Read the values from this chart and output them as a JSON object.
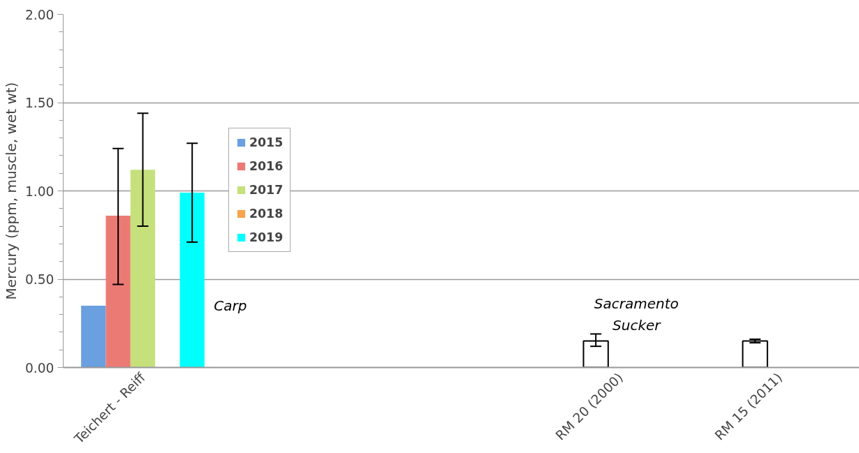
{
  "chart_data": {
    "type": "bar",
    "ylabel": "Mercury (ppm, muscle, wet wt)",
    "categories": [
      "Teichert - Reiff",
      null,
      null,
      "RM 20 (2000)",
      "RM 15 (2011)"
    ],
    "series": [
      {
        "name": "2015",
        "color": "#6a9fe0",
        "values": [
          0.35,
          null,
          null,
          null,
          null
        ]
      },
      {
        "name": "2016",
        "color": "#ec7a74",
        "colors": [
          "#ec7a74",
          "#ec7a74",
          "#ec7a74",
          "#ffffff",
          "#ffffff"
        ],
        "values": [
          0.86,
          null,
          null,
          0.15,
          0.15
        ],
        "errors": [
          [
            0.47,
            1.24
          ],
          null,
          null,
          [
            0.12,
            0.19
          ],
          [
            0.14,
            0.16
          ]
        ]
      },
      {
        "name": "2017",
        "color": "#c6e07c",
        "values": [
          1.12,
          null,
          null,
          null,
          null
        ],
        "errors": [
          [
            0.8,
            1.44
          ],
          null,
          null,
          null,
          null
        ]
      },
      {
        "name": "2018",
        "color": "#f7a54a",
        "values": [
          null,
          null,
          null,
          null,
          null
        ]
      },
      {
        "name": "2019",
        "color": "#00ffff",
        "values": [
          0.99,
          null,
          null,
          null,
          null
        ],
        "errors": [
          [
            0.71,
            1.27
          ],
          null,
          null,
          null,
          null
        ]
      }
    ],
    "ylim": [
      0,
      2
    ],
    "yticks": [
      {
        "value": 0,
        "label": "0.00"
      },
      {
        "value": 0.1,
        "label": null
      },
      {
        "value": 0.2,
        "label": null
      },
      {
        "value": 0.3,
        "label": null
      },
      {
        "value": 0.4,
        "label": null
      },
      {
        "value": 0.5,
        "label": "0.50"
      },
      {
        "value": 0.6,
        "label": null
      },
      {
        "value": 0.7,
        "label": null
      },
      {
        "value": 0.8,
        "label": null
      },
      {
        "value": 0.9,
        "label": null
      },
      {
        "value": 1,
        "label": "1.00"
      },
      {
        "value": 1.1,
        "label": null
      },
      {
        "value": 1.2,
        "label": null
      },
      {
        "value": 1.3,
        "label": null
      },
      {
        "value": 1.4,
        "label": null
      },
      {
        "value": 1.5,
        "label": "1.50"
      },
      {
        "value": 1.6,
        "label": null
      },
      {
        "value": 1.7,
        "label": null
      },
      {
        "value": 1.8,
        "label": null
      },
      {
        "value": 1.9,
        "label": null
      },
      {
        "value": 2,
        "label": "2.00"
      }
    ],
    "annotations": [
      "Carp",
      "Sacramento Sucker"
    ],
    "grid": "y",
    "legend": "top left"
  }
}
